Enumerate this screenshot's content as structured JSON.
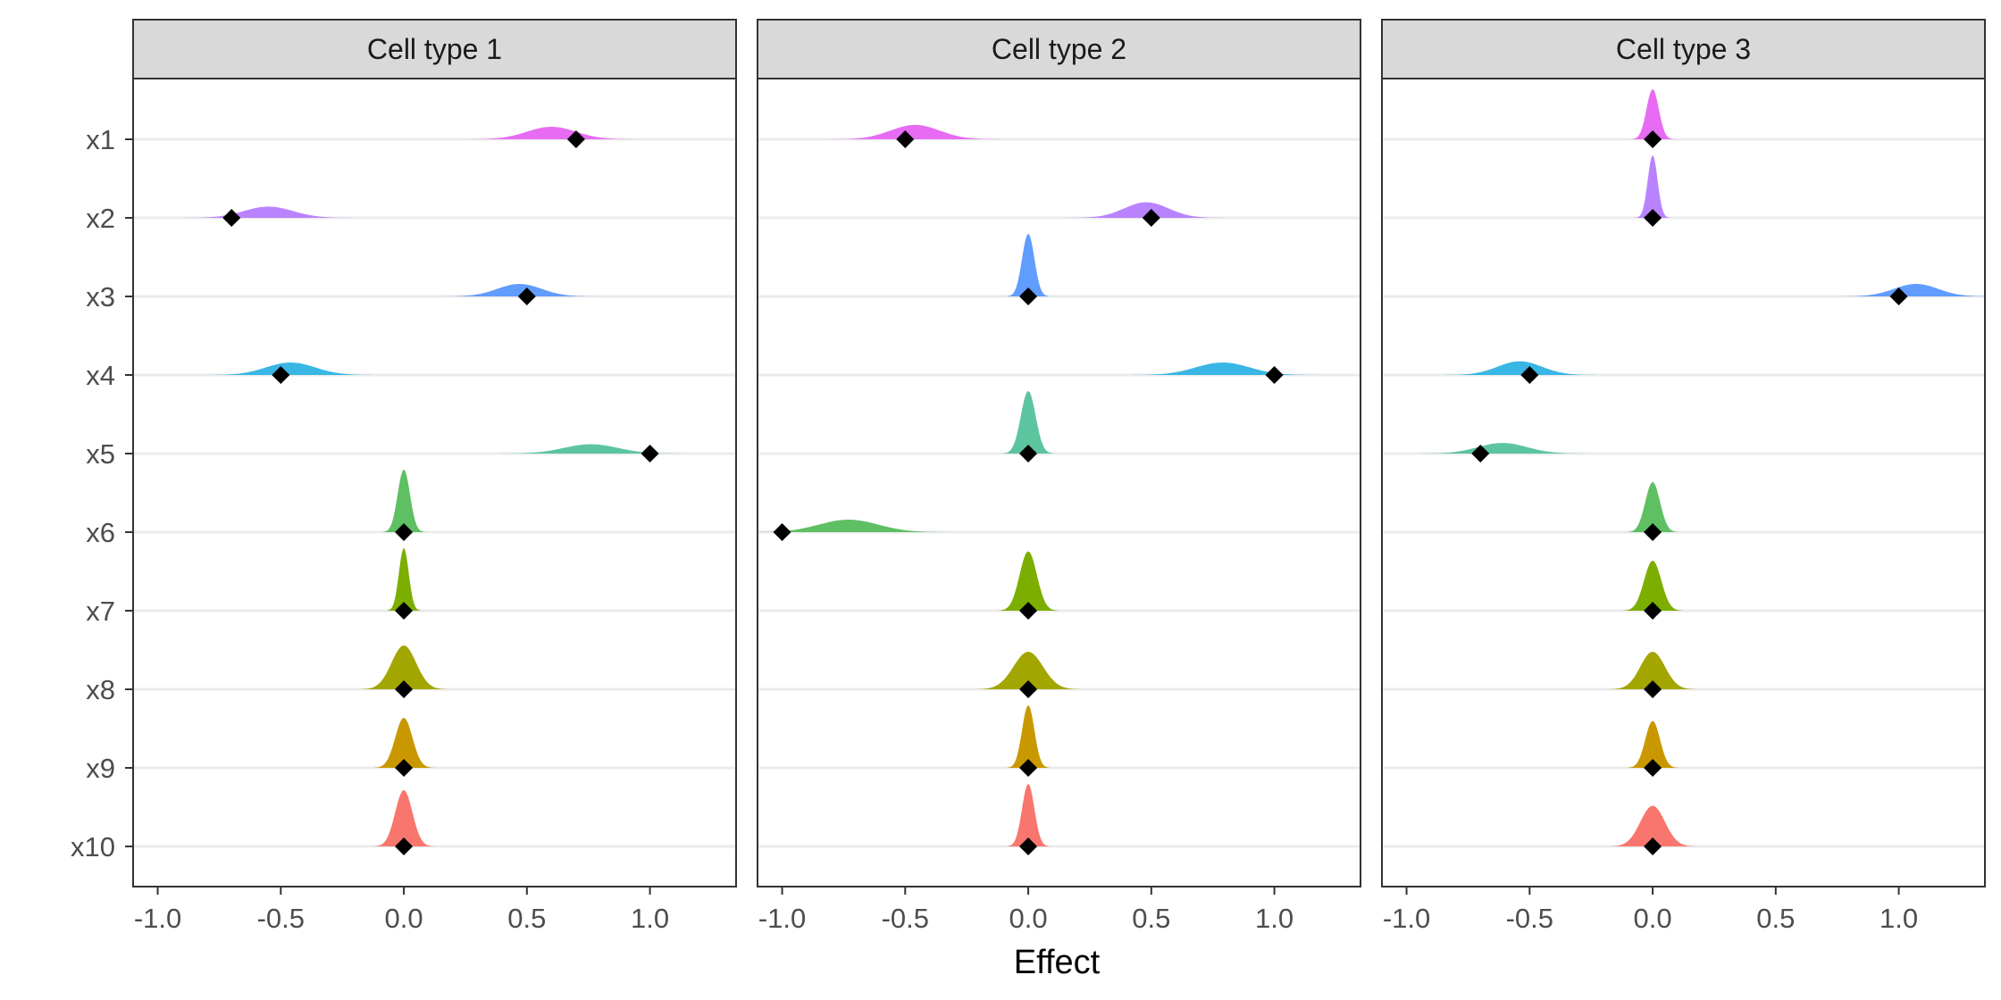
{
  "chart_data": {
    "type": "ridgeline",
    "xlabel": "Effect",
    "ylabel": "",
    "xlim": [
      -1.1,
      1.35
    ],
    "xticks": [
      -1.0,
      -0.5,
      0.0,
      0.5,
      1.0
    ],
    "xtick_labels": [
      "-1.0",
      "-0.5",
      "0.0",
      "0.5",
      "1.0"
    ],
    "grid": "horizontal",
    "legend": "none",
    "rows": [
      "x1",
      "x2",
      "x3",
      "x4",
      "x5",
      "x6",
      "x7",
      "x8",
      "x9",
      "x10"
    ],
    "row_colors": [
      "#E76BF3",
      "#B983FF",
      "#619CFF",
      "#39B6E4",
      "#5CC5A0",
      "#5FBF63",
      "#7CAE00",
      "#A3A500",
      "#C99800",
      "#F8766D"
    ],
    "panels": [
      {
        "title": "Cell type 1",
        "true_values": [
          0.7,
          -0.7,
          0.5,
          -0.5,
          1.0,
          0.0,
          0.0,
          0.0,
          0.0,
          0.0
        ],
        "posterior_modes": [
          0.6,
          -0.55,
          0.47,
          -0.46,
          0.76,
          0.0,
          0.0,
          0.0,
          0.0,
          0.0
        ],
        "posterior_spread": [
          0.1,
          0.1,
          0.09,
          0.1,
          0.11,
          0.025,
          0.02,
          0.05,
          0.035,
          0.035
        ],
        "peak_heights": [
          0.2,
          0.18,
          0.2,
          0.2,
          0.15,
          1.0,
          1.0,
          0.7,
          0.8,
          0.9
        ]
      },
      {
        "title": "Cell type 2",
        "true_values": [
          -0.5,
          0.5,
          0.0,
          1.0,
          0.0,
          -1.0,
          0.0,
          0.0,
          0.0,
          0.0
        ],
        "posterior_modes": [
          -0.46,
          0.48,
          0.0,
          0.79,
          0.0,
          -0.73,
          0.0,
          0.0,
          0.0,
          0.0
        ],
        "posterior_spread": [
          0.1,
          0.09,
          0.025,
          0.11,
          0.03,
          0.12,
          0.035,
          0.06,
          0.025,
          0.025
        ],
        "peak_heights": [
          0.23,
          0.25,
          1.0,
          0.2,
          1.0,
          0.2,
          0.95,
          0.6,
          1.0,
          1.0
        ]
      },
      {
        "title": "Cell type 3",
        "true_values": [
          0.0,
          0.0,
          1.0,
          -0.5,
          -0.7,
          0.0,
          0.0,
          0.0,
          0.0,
          0.0
        ],
        "posterior_modes": [
          0.0,
          0.0,
          1.07,
          -0.54,
          -0.61,
          0.0,
          0.0,
          0.0,
          0.0,
          0.0
        ],
        "posterior_spread": [
          0.025,
          0.02,
          0.09,
          0.09,
          0.1,
          0.03,
          0.035,
          0.05,
          0.03,
          0.05
        ],
        "peak_heights": [
          0.8,
          1.0,
          0.2,
          0.22,
          0.17,
          0.8,
          0.8,
          0.6,
          0.75,
          0.65
        ]
      }
    ]
  }
}
